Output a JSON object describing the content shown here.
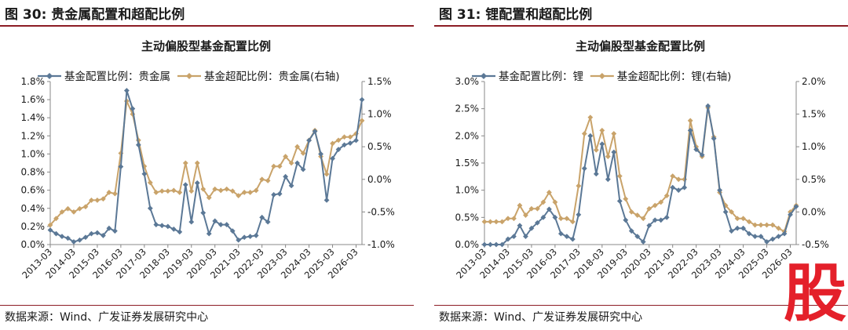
{
  "figures": [
    {
      "label": "图 30:",
      "title": "贵金属配置和超配比例",
      "source": "数据来源：Wind、广发证券发展研究中心"
    },
    {
      "label": "图 31:",
      "title": "锂配置和超配比例",
      "source": "数据来源：Wind、广发证券发展研究中心"
    }
  ],
  "watermark": "股",
  "colors": {
    "accent_rule": "#8c1c24",
    "series_alloc": "#5b7896",
    "series_over": "#c9a36a",
    "axis": "#888888",
    "stamp": "#e4202a"
  },
  "chart_data": [
    {
      "type": "line",
      "title": "主动偏股型基金配置比例",
      "x_ticks": [
        "2013-03",
        "2014-03",
        "2015-03",
        "2016-03",
        "2017-03",
        "2018-03",
        "2019-03",
        "2020-03",
        "2021-03",
        "2022-03",
        "2023-03",
        "2024-03",
        "2025-03",
        "2026-03"
      ],
      "x_range": [
        2013.0,
        2026.25
      ],
      "y_left": {
        "range": [
          0,
          1.8
        ],
        "step": 0.2,
        "format": "percent1",
        "ticks": [
          "0.0%",
          "0.2%",
          "0.4%",
          "0.6%",
          "0.8%",
          "1.0%",
          "1.2%",
          "1.4%",
          "1.6%",
          "1.8%"
        ]
      },
      "y_right": {
        "range": [
          -1.0,
          1.5
        ],
        "step": 0.5,
        "format": "percent1",
        "ticks": [
          "-1.0%",
          "-0.5%",
          "0.0%",
          "0.5%",
          "1.0%",
          "1.5%"
        ]
      },
      "series": [
        {
          "name": "基金配置比例：贵金属",
          "axis": "left",
          "color": "#5b7896",
          "marker": "diamond",
          "t": [
            2013.0,
            2013.25,
            2013.5,
            2013.75,
            2014.0,
            2014.25,
            2014.5,
            2014.75,
            2015.0,
            2015.25,
            2015.5,
            2015.75,
            2016.0,
            2016.25,
            2016.5,
            2016.75,
            2017.0,
            2017.25,
            2017.5,
            2017.75,
            2018.0,
            2018.25,
            2018.5,
            2018.75,
            2019.0,
            2019.25,
            2019.5,
            2019.75,
            2020.0,
            2020.25,
            2020.5,
            2020.75,
            2021.0,
            2021.25,
            2021.5,
            2021.75,
            2022.0,
            2022.25,
            2022.5,
            2022.75,
            2023.0,
            2023.25,
            2023.5,
            2023.75,
            2024.0,
            2024.25,
            2024.5,
            2024.75,
            2025.0,
            2025.25,
            2025.5,
            2025.75,
            2026.0,
            2026.25
          ],
          "values": [
            0.16,
            0.12,
            0.09,
            0.07,
            0.03,
            0.05,
            0.08,
            0.12,
            0.13,
            0.1,
            0.18,
            0.15,
            0.86,
            1.7,
            1.5,
            1.1,
            0.78,
            0.4,
            0.22,
            0.21,
            0.2,
            0.17,
            0.14,
            0.66,
            0.25,
            0.68,
            0.35,
            0.12,
            0.26,
            0.22,
            0.22,
            0.15,
            0.05,
            0.08,
            0.09,
            0.1,
            0.3,
            0.25,
            0.55,
            0.56,
            0.75,
            0.65,
            0.9,
            0.83,
            1.15,
            1.25,
            1.0,
            0.49,
            0.95,
            1.05,
            1.1,
            1.12,
            1.15,
            1.6
          ]
        },
        {
          "name": "基金超配比例：贵金属(右轴)",
          "axis": "right",
          "color": "#c9a36a",
          "marker": "diamond",
          "t": [
            2013.0,
            2013.25,
            2013.5,
            2013.75,
            2014.0,
            2014.25,
            2014.5,
            2014.75,
            2015.0,
            2015.25,
            2015.5,
            2015.75,
            2016.0,
            2016.25,
            2016.5,
            2016.75,
            2017.0,
            2017.25,
            2017.5,
            2017.75,
            2018.0,
            2018.25,
            2018.5,
            2018.75,
            2019.0,
            2019.25,
            2019.5,
            2019.75,
            2020.0,
            2020.25,
            2020.5,
            2020.75,
            2021.0,
            2021.25,
            2021.5,
            2021.75,
            2022.0,
            2022.25,
            2022.5,
            2022.75,
            2023.0,
            2023.25,
            2023.5,
            2023.75,
            2024.0,
            2024.25,
            2024.5,
            2024.75,
            2025.0,
            2025.25,
            2025.5,
            2025.75,
            2026.0,
            2026.25
          ],
          "values": [
            -0.7,
            -0.6,
            -0.5,
            -0.45,
            -0.5,
            -0.45,
            -0.42,
            -0.32,
            -0.32,
            -0.3,
            -0.2,
            -0.22,
            0.4,
            1.2,
            1.0,
            0.6,
            0.2,
            -0.05,
            -0.2,
            -0.18,
            -0.18,
            -0.17,
            -0.2,
            0.25,
            -0.18,
            0.25,
            -0.15,
            -0.28,
            -0.15,
            -0.17,
            -0.15,
            -0.18,
            -0.25,
            -0.2,
            -0.2,
            -0.17,
            0.0,
            -0.02,
            0.2,
            0.2,
            0.35,
            0.25,
            0.5,
            0.4,
            0.6,
            0.75,
            0.35,
            0.08,
            0.55,
            0.6,
            0.65,
            0.65,
            0.7,
            0.9
          ]
        }
      ]
    },
    {
      "type": "line",
      "title": "主动偏股型基金配置比例",
      "x_ticks": [
        "2013-03",
        "2014-03",
        "2015-03",
        "2016-03",
        "2017-03",
        "2018-03",
        "2019-03",
        "2020-03",
        "2021-03",
        "2022-03",
        "2023-03",
        "2024-03",
        "2025-03",
        "2026-03"
      ],
      "x_range": [
        2013.0,
        2026.25
      ],
      "y_left": {
        "range": [
          0,
          3.0
        ],
        "step": 0.5,
        "format": "percent1",
        "ticks": [
          "0.0%",
          "0.5%",
          "1.0%",
          "1.5%",
          "2.0%",
          "2.5%",
          "3.0%"
        ]
      },
      "y_right": {
        "range": [
          -0.5,
          2.0
        ],
        "step": 0.5,
        "format": "percent1",
        "ticks": [
          "-0.5%",
          "0.0%",
          "0.5%",
          "1.0%",
          "1.5%",
          "2.0%"
        ]
      },
      "series": [
        {
          "name": "基金配置比例：锂",
          "axis": "left",
          "color": "#5b7896",
          "marker": "diamond",
          "t": [
            2013.0,
            2013.25,
            2013.5,
            2013.75,
            2014.0,
            2014.25,
            2014.5,
            2014.75,
            2015.0,
            2015.25,
            2015.5,
            2015.75,
            2016.0,
            2016.25,
            2016.5,
            2016.75,
            2017.0,
            2017.25,
            2017.5,
            2017.75,
            2018.0,
            2018.25,
            2018.5,
            2018.75,
            2019.0,
            2019.25,
            2019.5,
            2019.75,
            2020.0,
            2020.25,
            2020.5,
            2020.75,
            2021.0,
            2021.25,
            2021.5,
            2021.75,
            2022.0,
            2022.25,
            2022.5,
            2022.75,
            2023.0,
            2023.25,
            2023.5,
            2023.75,
            2024.0,
            2024.25,
            2024.5,
            2024.75,
            2025.0,
            2025.25,
            2025.5,
            2025.75,
            2026.0,
            2026.25
          ],
          "values": [
            0.0,
            0.0,
            0.0,
            0.0,
            0.1,
            0.15,
            0.35,
            0.15,
            0.3,
            0.4,
            0.5,
            0.65,
            0.5,
            0.2,
            0.15,
            0.1,
            0.55,
            1.4,
            2.0,
            1.3,
            1.85,
            1.2,
            1.7,
            0.8,
            0.45,
            0.25,
            0.15,
            0.05,
            0.35,
            0.45,
            0.45,
            0.5,
            1.05,
            1.0,
            1.05,
            2.1,
            1.75,
            1.65,
            2.55,
            1.95,
            1.0,
            0.6,
            0.25,
            0.3,
            0.3,
            0.2,
            0.15,
            0.15,
            0.05,
            0.1,
            0.15,
            0.2,
            0.55,
            0.7
          ]
        },
        {
          "name": "基金超配比例：锂(右轴)",
          "axis": "right",
          "color": "#c9a36a",
          "marker": "diamond",
          "t": [
            2013.0,
            2013.25,
            2013.5,
            2013.75,
            2014.0,
            2014.25,
            2014.5,
            2014.75,
            2015.0,
            2015.25,
            2015.5,
            2015.75,
            2016.0,
            2016.25,
            2016.5,
            2016.75,
            2017.0,
            2017.25,
            2017.5,
            2017.75,
            2018.0,
            2018.25,
            2018.5,
            2018.75,
            2019.0,
            2019.25,
            2019.5,
            2019.75,
            2020.0,
            2020.25,
            2020.5,
            2020.75,
            2021.0,
            2021.25,
            2021.5,
            2021.75,
            2022.0,
            2022.25,
            2022.5,
            2022.75,
            2023.0,
            2023.25,
            2023.5,
            2023.75,
            2024.0,
            2024.25,
            2024.5,
            2024.75,
            2025.0,
            2025.25,
            2025.5,
            2025.75,
            2026.0,
            2026.25
          ],
          "values": [
            -0.15,
            -0.15,
            -0.15,
            -0.15,
            -0.1,
            -0.1,
            0.1,
            -0.05,
            0.05,
            0.05,
            0.15,
            0.3,
            0.15,
            -0.1,
            -0.1,
            -0.15,
            0.4,
            1.2,
            1.45,
            0.95,
            1.25,
            0.85,
            1.2,
            0.55,
            0.2,
            0.0,
            -0.05,
            -0.1,
            0.05,
            0.1,
            0.15,
            0.25,
            0.55,
            0.5,
            0.5,
            1.4,
            1.0,
            0.85,
            1.6,
            1.15,
            0.3,
            0.1,
            0.0,
            -0.1,
            -0.1,
            -0.15,
            -0.2,
            -0.2,
            -0.2,
            -0.2,
            -0.25,
            -0.3,
            0.0,
            0.1
          ]
        }
      ]
    }
  ]
}
